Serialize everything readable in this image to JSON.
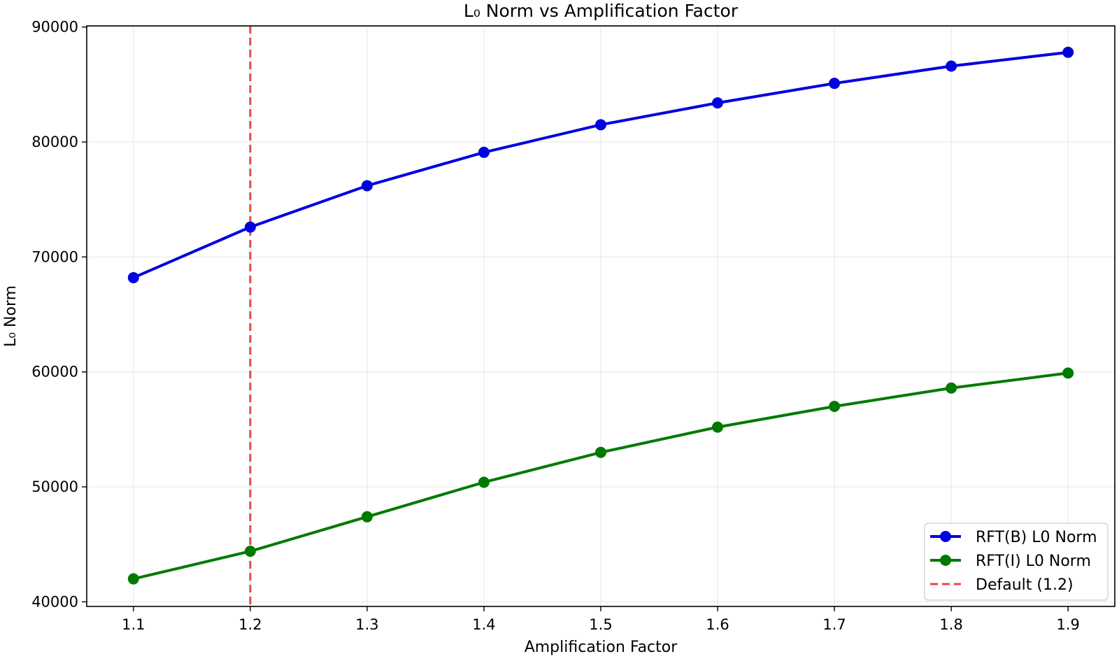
{
  "chart_data": {
    "type": "line",
    "title": "L₀ Norm vs Amplification Factor",
    "xlabel": "Amplification Factor",
    "ylabel": "L₀ Norm",
    "x": [
      1.1,
      1.2,
      1.3,
      1.4,
      1.5,
      1.6,
      1.7,
      1.8,
      1.9
    ],
    "xticks": [
      "1.1",
      "1.2",
      "1.3",
      "1.4",
      "1.5",
      "1.6",
      "1.7",
      "1.8",
      "1.9"
    ],
    "xlim": [
      1.06,
      1.94
    ],
    "ylim": [
      39600,
      90100
    ],
    "yticks": [
      40000,
      50000,
      60000,
      70000,
      80000,
      90000
    ],
    "grid": true,
    "legend_position": "lower-right",
    "series": [
      {
        "name": "RFT(B) L0 Norm",
        "color": "#0000e0",
        "marker": "circle",
        "values": [
          68200,
          72600,
          76200,
          79100,
          81500,
          83400,
          85100,
          86600,
          87800
        ]
      },
      {
        "name": "RFT(I) L0 Norm",
        "color": "#007a00",
        "marker": "circle",
        "values": [
          42000,
          44400,
          47400,
          50400,
          53000,
          55200,
          57000,
          58600,
          59900
        ]
      }
    ],
    "reference_lines": [
      {
        "name": "Default (1.2)",
        "x": 1.2,
        "color": "#e34a4a",
        "style": "dashed"
      }
    ]
  }
}
